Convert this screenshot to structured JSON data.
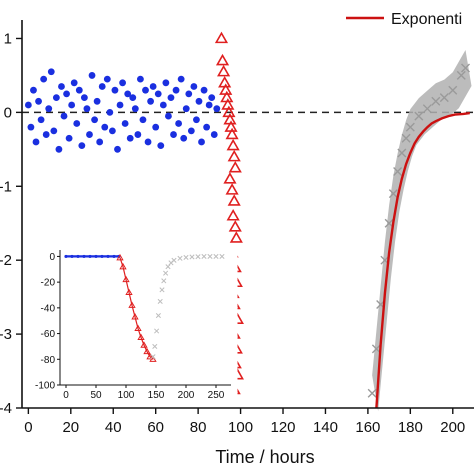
{
  "chart_data": [
    {
      "type": "scatter",
      "title": "",
      "xlabel": "Time / hours",
      "ylabel": "",
      "xlim": [
        -3,
        210
      ],
      "ylim": [
        -4,
        1.25
      ],
      "x_ticks": [
        0,
        20,
        40,
        60,
        80,
        100,
        120,
        140,
        160,
        180,
        200
      ],
      "x_tick_labels": [
        "0",
        "20",
        "40",
        "60",
        "80",
        "100",
        "120",
        "140",
        "160",
        "180",
        "200"
      ],
      "y_ticks": [
        1,
        0,
        -1,
        -2,
        -3,
        -4
      ],
      "y_tick_labels": [
        "1",
        "0",
        "-1",
        "-2",
        "-3",
        "-4"
      ],
      "grid": false,
      "reference_line": {
        "y": 0,
        "style": "dashed"
      },
      "legend": {
        "placement": "top-right",
        "entries": [
          "Exponenti"
        ]
      },
      "series": [
        {
          "marker": "circle",
          "color": "#1a2fe0",
          "points": [
            [
              0.0,
              0.1
            ],
            [
              1.2,
              -0.2
            ],
            [
              2.4,
              0.3
            ],
            [
              3.6,
              -0.4
            ],
            [
              4.8,
              0.15
            ],
            [
              6.0,
              -0.1
            ],
            [
              7.2,
              0.45
            ],
            [
              8.4,
              -0.3
            ],
            [
              9.6,
              0.05
            ],
            [
              10.8,
              0.55
            ],
            [
              12.0,
              -0.25
            ],
            [
              13.2,
              0.2
            ],
            [
              14.4,
              -0.5
            ],
            [
              15.6,
              0.35
            ],
            [
              16.8,
              -0.05
            ],
            [
              18.0,
              0.25
            ],
            [
              19.2,
              -0.35
            ],
            [
              20.4,
              0.1
            ],
            [
              21.6,
              0.4
            ],
            [
              22.8,
              -0.15
            ],
            [
              24.0,
              0.3
            ],
            [
              25.2,
              -0.45
            ],
            [
              26.4,
              0.2
            ],
            [
              27.6,
              0.05
            ],
            [
              28.8,
              -0.3
            ],
            [
              30.0,
              0.5
            ],
            [
              31.2,
              -0.1
            ],
            [
              32.4,
              0.15
            ],
            [
              33.6,
              -0.4
            ],
            [
              34.8,
              0.35
            ],
            [
              36.0,
              -0.2
            ],
            [
              37.2,
              0.45
            ],
            [
              38.4,
              0.0
            ],
            [
              39.6,
              -0.25
            ],
            [
              40.8,
              0.3
            ],
            [
              42.0,
              -0.5
            ],
            [
              43.2,
              0.1
            ],
            [
              44.4,
              0.4
            ],
            [
              45.6,
              -0.15
            ],
            [
              46.8,
              0.25
            ],
            [
              48.0,
              -0.35
            ],
            [
              49.2,
              0.2
            ],
            [
              50.4,
              0.05
            ],
            [
              51.6,
              -0.3
            ],
            [
              52.8,
              0.45
            ],
            [
              54.0,
              -0.1
            ],
            [
              55.2,
              0.3
            ],
            [
              56.4,
              -0.4
            ],
            [
              57.6,
              0.15
            ],
            [
              58.8,
              0.35
            ],
            [
              60.0,
              -0.2
            ],
            [
              61.2,
              0.25
            ],
            [
              62.4,
              -0.45
            ],
            [
              63.6,
              0.1
            ],
            [
              64.8,
              0.4
            ],
            [
              66.0,
              -0.05
            ],
            [
              67.2,
              0.2
            ],
            [
              68.4,
              -0.3
            ],
            [
              69.6,
              0.3
            ],
            [
              70.8,
              -0.15
            ],
            [
              72.0,
              0.45
            ],
            [
              73.2,
              -0.35
            ],
            [
              74.4,
              0.05
            ],
            [
              75.6,
              0.25
            ],
            [
              76.8,
              -0.25
            ],
            [
              78.0,
              0.35
            ],
            [
              79.2,
              -0.1
            ],
            [
              80.4,
              0.15
            ],
            [
              81.6,
              -0.4
            ],
            [
              82.8,
              0.3
            ],
            [
              84.0,
              -0.2
            ],
            [
              85.2,
              0.1
            ],
            [
              86.4,
              0.2
            ],
            [
              87.6,
              -0.3
            ],
            [
              88.8,
              0.05
            ]
          ]
        },
        {
          "marker": "triangle-open",
          "color": "#e02020",
          "points": [
            [
              91,
              1.0
            ],
            [
              91.5,
              0.7
            ],
            [
              92,
              0.55
            ],
            [
              92.5,
              0.4
            ],
            [
              93,
              0.3
            ],
            [
              93.5,
              0.2
            ],
            [
              94,
              0.1
            ],
            [
              94.5,
              0.0
            ],
            [
              95,
              -0.1
            ],
            [
              95.5,
              -0.2
            ],
            [
              96,
              -0.3
            ],
            [
              96.5,
              -0.45
            ],
            [
              97,
              -0.6
            ],
            [
              97.5,
              -0.75
            ],
            [
              95,
              -0.9
            ],
            [
              96,
              -1.05
            ],
            [
              97,
              -1.2
            ],
            [
              96.5,
              -1.4
            ],
            [
              97.5,
              -1.55
            ],
            [
              98,
              -1.7
            ],
            [
              96,
              -1.9
            ],
            [
              97.5,
              -2.1
            ],
            [
              98,
              -2.3
            ],
            [
              96.5,
              -2.45
            ],
            [
              97,
              -2.6
            ],
            [
              98.5,
              -2.8
            ],
            [
              97,
              -3.0
            ],
            [
              98,
              -3.2
            ],
            [
              97.5,
              -3.4
            ],
            [
              98.5,
              -3.55
            ],
            [
              97,
              -3.75
            ]
          ]
        },
        {
          "marker": "x-band",
          "color": "#b0b0b0",
          "points": [
            [
              162,
              -3.8
            ],
            [
              164,
              -3.2
            ],
            [
              166,
              -2.6
            ],
            [
              168,
              -2.0
            ],
            [
              170,
              -1.5
            ],
            [
              172,
              -1.1
            ],
            [
              174,
              -0.8
            ],
            [
              176,
              -0.55
            ],
            [
              178,
              -0.35
            ],
            [
              180,
              -0.2
            ],
            [
              184,
              -0.05
            ],
            [
              188,
              0.05
            ],
            [
              192,
              0.15
            ],
            [
              196,
              0.2
            ],
            [
              200,
              0.3
            ],
            [
              204,
              0.5
            ],
            [
              206,
              0.6
            ]
          ]
        },
        {
          "name": "Exponenti",
          "marker": "line",
          "color": "#cc1111",
          "points": [
            [
              164,
              -4.0
            ],
            [
              166,
              -3.15
            ],
            [
              168,
              -2.45
            ],
            [
              170,
              -1.9
            ],
            [
              172,
              -1.48
            ],
            [
              174,
              -1.15
            ],
            [
              176,
              -0.9
            ],
            [
              178,
              -0.7
            ],
            [
              180,
              -0.55
            ],
            [
              182,
              -0.42
            ],
            [
              184,
              -0.33
            ],
            [
              186,
              -0.26
            ],
            [
              188,
              -0.2
            ],
            [
              190,
              -0.15
            ],
            [
              192,
              -0.12
            ],
            [
              195,
              -0.08
            ],
            [
              198,
              -0.05
            ],
            [
              201,
              -0.03
            ],
            [
              205,
              -0.02
            ],
            [
              208,
              -0.01
            ]
          ]
        }
      ]
    },
    {
      "type": "scatter",
      "title": "",
      "xlabel": "",
      "ylabel": "",
      "xlim": [
        -10,
        275
      ],
      "ylim": [
        -100,
        5
      ],
      "x_ticks": [
        0,
        50,
        100,
        150,
        200,
        250
      ],
      "x_tick_labels": [
        "0",
        "50",
        "100",
        "150",
        "200",
        "250"
      ],
      "y_ticks": [
        0,
        -20,
        -40,
        -60,
        -80,
        -100
      ],
      "y_tick_labels": [
        "0",
        "-20",
        "-40",
        "-60",
        "-80",
        "-100"
      ],
      "grid": false,
      "series": [
        {
          "marker": "circle",
          "color": "#1a2fe0",
          "points": [
            [
              0,
              0
            ],
            [
              10,
              0
            ],
            [
              20,
              0
            ],
            [
              30,
              0
            ],
            [
              40,
              0
            ],
            [
              50,
              0
            ],
            [
              60,
              0
            ],
            [
              70,
              0
            ],
            [
              80,
              0
            ],
            [
              88,
              0
            ]
          ]
        },
        {
          "marker": "triangle-open",
          "color": "#e02020",
          "points": [
            [
              90,
              -1
            ],
            [
              95,
              -8
            ],
            [
              100,
              -18
            ],
            [
              105,
              -28
            ],
            [
              110,
              -38
            ],
            [
              115,
              -47
            ],
            [
              120,
              -56
            ],
            [
              125,
              -63
            ],
            [
              130,
              -69
            ],
            [
              135,
              -74
            ],
            [
              140,
              -78
            ],
            [
              145,
              -80
            ]
          ]
        },
        {
          "marker": "x",
          "color": "#bdbdbd",
          "points": [
            [
              145,
              -78
            ],
            [
              148,
              -70
            ],
            [
              151,
              -58
            ],
            [
              154,
              -46
            ],
            [
              157,
              -35
            ],
            [
              160,
              -26
            ],
            [
              163,
              -19
            ],
            [
              166,
              -13
            ],
            [
              170,
              -8
            ],
            [
              175,
              -5
            ],
            [
              180,
              -3
            ],
            [
              190,
              -1.5
            ],
            [
              200,
              -0.8
            ],
            [
              210,
              -0.4
            ],
            [
              220,
              -0.2
            ],
            [
              230,
              0
            ],
            [
              240,
              0
            ],
            [
              250,
              0
            ],
            [
              260,
              0
            ]
          ]
        }
      ]
    }
  ]
}
